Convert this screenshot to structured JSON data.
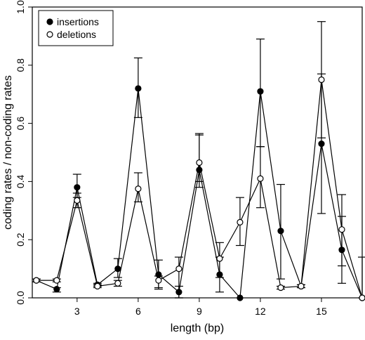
{
  "chart_data": {
    "type": "line",
    "xlabel": "length (bp)",
    "ylabel": "coding rates / non-coding rates",
    "xlim": [
      0.8,
      17
    ],
    "ylim": [
      0,
      1
    ],
    "x_ticks": [
      3,
      6,
      9,
      12,
      15
    ],
    "y_ticks": [
      0.0,
      0.2,
      0.4,
      0.6,
      0.8,
      1.0
    ],
    "y_tick_labels": [
      "0.0",
      "0.2",
      "0.4",
      "0.6",
      "0.8",
      "1.0"
    ],
    "legend": {
      "placement": "top-left"
    },
    "grid": false,
    "x": [
      1,
      2,
      3,
      4,
      5,
      6,
      7,
      8,
      9,
      10,
      11,
      12,
      13,
      14,
      15,
      16,
      17
    ],
    "series": [
      {
        "name": "insertions",
        "marker": "filled-circle",
        "color": "#000000",
        "values": [
          0.06,
          0.03,
          0.38,
          0.045,
          0.1,
          0.72,
          0.08,
          0.02,
          0.44,
          0.08,
          0.0,
          0.71,
          0.23,
          0.04,
          0.53,
          0.165,
          0.0
        ],
        "err_lower": [
          0.055,
          0.02,
          0.345,
          0.04,
          0.07,
          0.62,
          0.03,
          0.0,
          0.4,
          0.02,
          0.0,
          0.52,
          0.065,
          0.035,
          0.29,
          0.05,
          0.0
        ],
        "err_upper": [
          0.065,
          0.035,
          0.425,
          0.05,
          0.135,
          0.825,
          0.13,
          0.04,
          0.56,
          0.14,
          0.0,
          0.89,
          0.39,
          0.045,
          0.77,
          0.28,
          0.0
        ]
      },
      {
        "name": "deletions",
        "marker": "open-circle",
        "color": "#000000",
        "values": [
          0.06,
          0.06,
          0.335,
          0.04,
          0.05,
          0.375,
          0.06,
          0.1,
          0.465,
          0.135,
          0.26,
          0.41,
          0.035,
          0.04,
          0.75,
          0.235,
          0.0
        ],
        "err_lower": [
          0.055,
          0.055,
          0.31,
          0.035,
          0.04,
          0.33,
          0.035,
          0.0,
          0.38,
          0.07,
          0.18,
          0.31,
          0.03,
          0.035,
          0.55,
          0.11,
          0.0
        ],
        "err_upper": [
          0.065,
          0.065,
          0.36,
          0.045,
          0.06,
          0.43,
          0.075,
          0.14,
          0.565,
          0.19,
          0.345,
          0.52,
          0.04,
          0.045,
          0.95,
          0.355,
          0.14
        ]
      }
    ]
  }
}
